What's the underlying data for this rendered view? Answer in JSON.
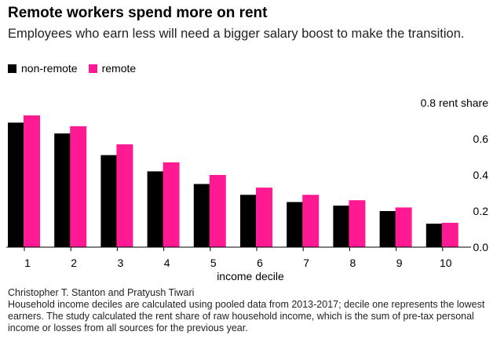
{
  "header": {
    "title": "Remote workers spend more on rent",
    "subtitle": "Employees who earn less will need a bigger salary boost to make the transition."
  },
  "chart_data": {
    "type": "bar",
    "categories": [
      "1",
      "2",
      "3",
      "4",
      "5",
      "6",
      "7",
      "8",
      "9",
      "10"
    ],
    "series": [
      {
        "name": "non-remote",
        "color": "#000000",
        "values": [
          0.69,
          0.63,
          0.51,
          0.42,
          0.35,
          0.29,
          0.25,
          0.23,
          0.2,
          0.13
        ]
      },
      {
        "name": "remote",
        "color": "#ff1a93",
        "values": [
          0.73,
          0.67,
          0.57,
          0.47,
          0.4,
          0.33,
          0.29,
          0.26,
          0.22,
          0.135
        ]
      }
    ],
    "xlabel": "income decile",
    "ylabel": "rent share",
    "ylim": [
      0,
      0.8
    ],
    "yticks": [
      0.0,
      0.2,
      0.4,
      0.6,
      0.8
    ],
    "ytick_labels": [
      "0.0",
      "0.2",
      "0.4",
      "0.6",
      "0.8 rent share"
    ],
    "grid": false,
    "legend_position": "top-left"
  },
  "footer": {
    "source": "Christopher T. Stanton and Pratyush Tiwari",
    "note": "Household income deciles are calculated using pooled data from 2013-2017; decile one represents the lowest earners. The study calculated the rent share of raw household income, which is the sum of pre-tax personal income or losses from all sources for the previous year."
  }
}
